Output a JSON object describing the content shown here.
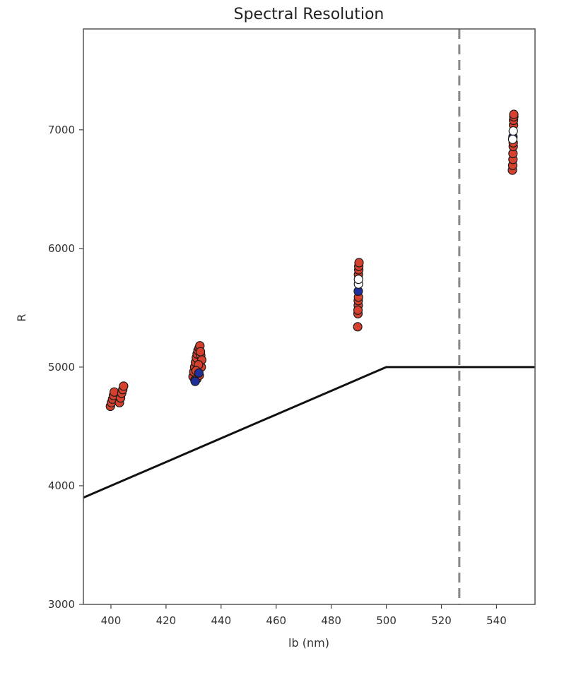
{
  "chart_data": {
    "type": "scatter",
    "title": "Spectral Resolution",
    "xlabel": "lb (nm)",
    "ylabel": "R",
    "xlim": [
      390,
      554
    ],
    "ylim": [
      3000,
      7850
    ],
    "x_ticks": [
      400,
      420,
      440,
      460,
      480,
      500,
      520,
      540
    ],
    "y_ticks": [
      3000,
      4000,
      5000,
      6000,
      7000
    ],
    "grid": false,
    "legend": "none",
    "colors": {
      "red_points": "#d6402f",
      "blue_points": "#1f2f9c",
      "white_points": "#ffffff",
      "marker_edge": "#1a1a1a",
      "requirement_line": "#111111",
      "vertical_dashed": "#888888"
    },
    "series": [
      {
        "marker": "circle",
        "color": "#d6402f",
        "points": [
          [
            399.8,
            4670
          ],
          [
            400.2,
            4700
          ],
          [
            400.6,
            4730
          ],
          [
            400.9,
            4760
          ],
          [
            401.2,
            4790
          ],
          [
            403.1,
            4700
          ],
          [
            403.5,
            4740
          ],
          [
            403.9,
            4780
          ],
          [
            404.3,
            4810
          ],
          [
            404.6,
            4840
          ],
          [
            429.8,
            4920
          ],
          [
            430.1,
            4960
          ],
          [
            430.4,
            5000
          ],
          [
            430.7,
            5040
          ],
          [
            431.0,
            5080
          ],
          [
            431.3,
            5110
          ],
          [
            431.6,
            5140
          ],
          [
            432.0,
            5160
          ],
          [
            432.3,
            5180
          ],
          [
            432.6,
            5100
          ],
          [
            430.5,
            4890
          ],
          [
            431.2,
            4900
          ],
          [
            432.1,
            4930
          ],
          [
            432.8,
            5000
          ],
          [
            433.0,
            5060
          ],
          [
            431.8,
            5020
          ],
          [
            432.5,
            5130
          ],
          [
            430.9,
            4970
          ],
          [
            489.6,
            5340
          ],
          [
            489.7,
            5450
          ],
          [
            489.8,
            5520
          ],
          [
            489.8,
            5560
          ],
          [
            489.9,
            5590
          ],
          [
            489.9,
            5780
          ],
          [
            490.0,
            5820
          ],
          [
            490.0,
            5850
          ],
          [
            490.1,
            5880
          ],
          [
            489.7,
            5480
          ],
          [
            545.8,
            6660
          ],
          [
            545.9,
            6700
          ],
          [
            546.0,
            6750
          ],
          [
            546.0,
            6800
          ],
          [
            546.1,
            6860
          ],
          [
            546.1,
            6890
          ],
          [
            546.2,
            7040
          ],
          [
            546.2,
            7080
          ],
          [
            546.3,
            7110
          ],
          [
            546.3,
            7130
          ]
        ]
      },
      {
        "marker": "circle",
        "color": "#1f2f9c",
        "points": [
          [
            430.6,
            4880
          ],
          [
            431.9,
            4950
          ],
          [
            489.8,
            5640
          ],
          [
            546.0,
            6940
          ]
        ]
      },
      {
        "marker": "circle",
        "color": "#ffffff",
        "points": [
          [
            489.9,
            5700
          ],
          [
            489.9,
            5740
          ],
          [
            546.1,
            6990
          ],
          [
            545.9,
            6920
          ]
        ]
      },
      {
        "type": "line",
        "style": "solid",
        "color": "#111111",
        "points": [
          [
            390,
            3900
          ],
          [
            500,
            5000
          ],
          [
            554,
            5000
          ]
        ]
      },
      {
        "type": "vline",
        "style": "dashed",
        "color": "#888888",
        "x": 526.5
      }
    ]
  }
}
